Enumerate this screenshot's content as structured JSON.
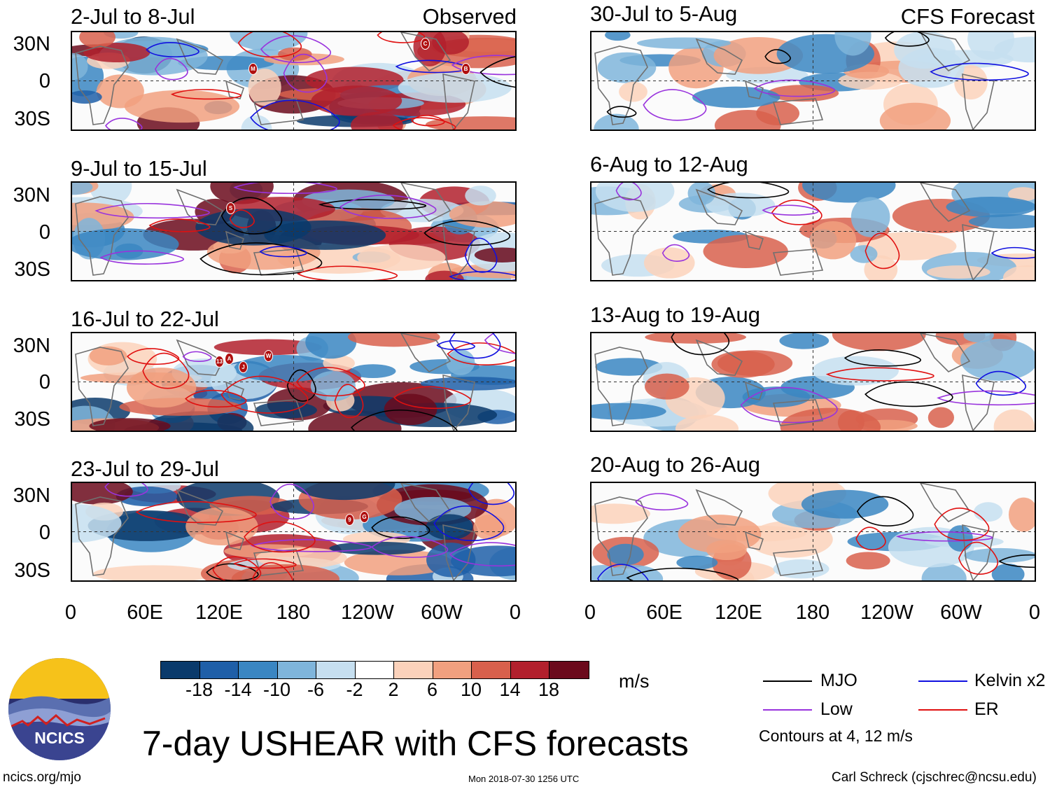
{
  "figure": {
    "title": "7-day USHEAR with CFS forecasts",
    "observed_label": "Observed",
    "forecast_label": "CFS Forecast",
    "units": "m/s",
    "site": "ncics.org/mjo",
    "timestamp": "Mon 2018-07-30 1256 UTC",
    "credit": "Carl Schreck (cjschrec@ncsu.edu)",
    "logo_text": "NCICS"
  },
  "chart_data": {
    "type": "heatmap",
    "variable": "USHEAR",
    "x_ticks": [
      "0",
      "60E",
      "120E",
      "180",
      "120W",
      "60W",
      "0"
    ],
    "y_ticks": [
      "30N",
      "0",
      "30S"
    ],
    "lon_range": [
      0,
      360
    ],
    "lat_range": [
      -40,
      40
    ],
    "colorbar": {
      "labels": [
        "-18",
        "-14",
        "-10",
        "-6",
        "-2",
        "2",
        "6",
        "10",
        "14",
        "18"
      ],
      "colors": [
        "#0a3a6b",
        "#1f5fa8",
        "#3a86c2",
        "#7fb5db",
        "#c6dff0",
        "#ffffff",
        "#fbd2bb",
        "#f1a07f",
        "#d8604c",
        "#b2202d",
        "#6b0a1c"
      ]
    },
    "contours": {
      "note": "Contours at 4, 12 m/s",
      "series": [
        {
          "name": "MJO",
          "color": "#000000"
        },
        {
          "name": "Kelvin x2",
          "color": "#1010e0"
        },
        {
          "name": "Low",
          "color": "#9933dd"
        },
        {
          "name": "ER",
          "color": "#e01010"
        }
      ]
    },
    "panels": [
      {
        "period": "2-Jul to 8-Jul",
        "kind": "observed",
        "storms": [
          "M",
          "C",
          "B"
        ]
      },
      {
        "period": "9-Jul to 15-Jul",
        "kind": "observed",
        "storms": [
          "S"
        ]
      },
      {
        "period": "16-Jul to 22-Jul",
        "kind": "observed",
        "storms": [
          "13",
          "A",
          "J",
          "W"
        ]
      },
      {
        "period": "23-Jul to 29-Jul",
        "kind": "observed",
        "storms": [
          "9",
          "G"
        ]
      },
      {
        "period": "30-Jul to 5-Aug",
        "kind": "forecast",
        "storms": []
      },
      {
        "period": "6-Aug to 12-Aug",
        "kind": "forecast",
        "storms": []
      },
      {
        "period": "13-Aug to 19-Aug",
        "kind": "forecast",
        "storms": []
      },
      {
        "period": "20-Aug to 26-Aug",
        "kind": "forecast",
        "storms": []
      }
    ]
  }
}
